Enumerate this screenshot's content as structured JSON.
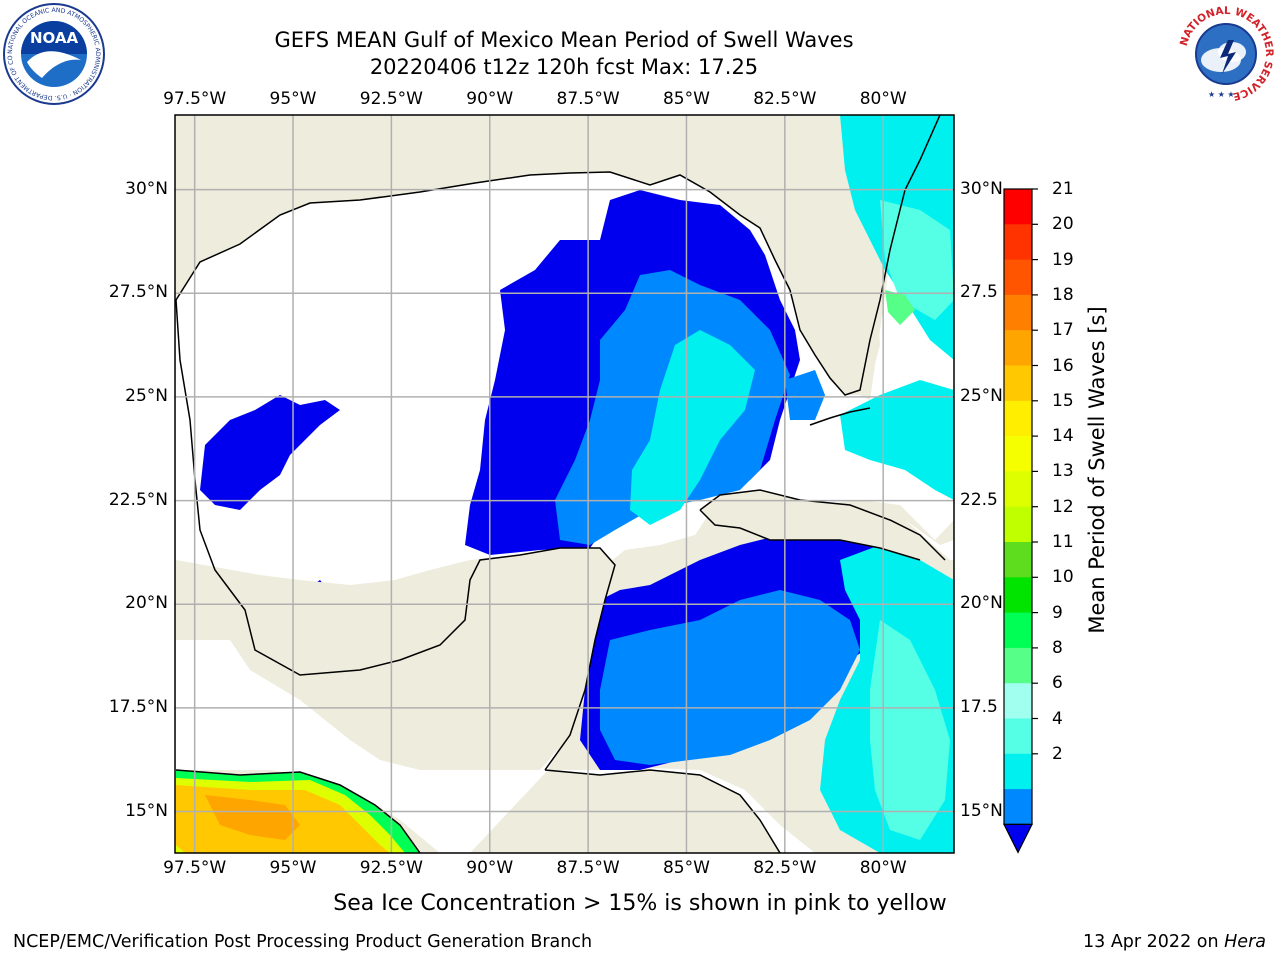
{
  "header": {
    "title_line1": "GEFS MEAN Gulf of Mexico Mean Period of Swell Waves",
    "title_line2": "20220406 t12z 120h fcst   Max: 17.25"
  },
  "logos": {
    "left": "noaa-logo",
    "right": "nws-logo",
    "left_text": "NOAA",
    "left_ring_text": "NATIONAL OCEANIC AND ATMOSPHERIC ADMINISTRATION · U.S. DEPARTMENT OF COMMERCE",
    "right_ring_text": "NATIONAL WEATHER SERVICE"
  },
  "map": {
    "lon_ticks": [
      "97.5°W",
      "95°W",
      "92.5°W",
      "90°W",
      "87.5°W",
      "85°W",
      "82.5°W",
      "80°W"
    ],
    "lat_ticks_left": [
      "30°N",
      "27.5°N",
      "25°N",
      "22.5°N",
      "20°N",
      "17.5°N",
      "15°N"
    ],
    "lat_ticks_right": [
      "30°N",
      "27.5",
      "25°N",
      "22.5",
      "20°N",
      "17.5",
      "15°N"
    ],
    "extent": {
      "lon_min": -98.0,
      "lon_max": -78.2,
      "lat_min": 14.0,
      "lat_max": 31.8
    },
    "colors": {
      "land": "#eeecdc",
      "no_data": "#ffffff",
      "grid": "#b0b0b0",
      "coast": "#000000"
    }
  },
  "colorbar": {
    "title": "Mean Period of Swell Waves [s]",
    "labels": [
      "21",
      "20",
      "19",
      "18",
      "17",
      "16",
      "15",
      "14",
      "13",
      "12",
      "11",
      "10",
      "9",
      "8",
      "6",
      "4",
      "2"
    ],
    "colors": [
      "#ff0000",
      "#ff3300",
      "#ff5500",
      "#ff8000",
      "#ffa500",
      "#ffc800",
      "#ffee00",
      "#f5ff00",
      "#ddff00",
      "#c0ff00",
      "#5edc1e",
      "#00e400",
      "#00ff55",
      "#55ff88",
      "#a0ffee",
      "#55ffe6",
      "#00f0f0",
      "#0088ff",
      "#0000ee"
    ]
  },
  "note": "Sea Ice Concentration > 15% is shown in pink to yellow",
  "footer": {
    "left": "NCEP/EMC/Verification Post Processing Product Generation Branch",
    "date": "13 Apr 2022 on ",
    "host": "Hera"
  }
}
